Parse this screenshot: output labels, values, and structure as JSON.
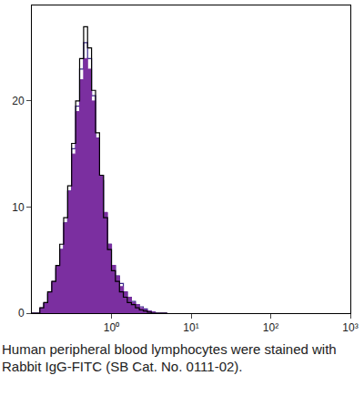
{
  "chart_data": {
    "type": "histogram",
    "annotations": [
      "Human peripheral blood lymphocytes were stained with Rabbit IgG-FITC (SB Cat. No. 0111-02)."
    ],
    "log": "x",
    "bins": [
      0.1,
      0.112,
      0.126,
      0.141,
      0.158,
      0.178,
      0.2,
      0.224,
      0.251,
      0.282,
      0.316,
      0.355,
      0.398,
      0.447,
      0.501,
      0.562,
      0.631,
      0.708,
      0.794,
      0.891,
      1.0,
      1.12,
      1.26,
      1.41,
      1.58,
      1.78,
      2.0,
      2.24,
      2.51,
      2.82,
      3.16,
      3.55,
      3.98,
      4.47,
      5.01
    ],
    "series": [
      {
        "color": "#3b2a8c",
        "type": "line",
        "values": [
          0,
          0,
          0.4,
          0.9,
          1.8,
          2.8,
          4.2,
          6,
          8.5,
          11.5,
          15.5,
          19.5,
          23,
          25.5,
          24,
          20.5,
          16.5,
          12.5,
          9,
          6.5,
          4.5,
          3.5,
          2.8,
          2,
          1.5,
          1.1,
          0.8,
          0.6,
          0.4,
          0.2,
          0.1,
          0,
          0,
          0
        ]
      },
      {
        "color": "#7b2fa0",
        "type": "area",
        "values": [
          0,
          0,
          0.5,
          1,
          2,
          3,
          4.5,
          6,
          8.5,
          11.5,
          15,
          19,
          22,
          24,
          23,
          20,
          16.5,
          13,
          9.5,
          6.5,
          4.5,
          3.5,
          2.5,
          2,
          1.5,
          1,
          0.8,
          0.5,
          0.3,
          0.2,
          0.1,
          0,
          0,
          0
        ]
      },
      {
        "color": "#000000",
        "type": "line",
        "values": [
          0,
          0,
          0.5,
          1,
          2,
          3,
          4.5,
          6.5,
          9,
          12,
          16,
          20,
          24,
          27,
          25,
          21,
          17,
          13,
          9,
          6,
          4,
          3,
          2,
          1.5,
          1,
          0.8,
          0.5,
          0.3,
          0.2,
          0.1,
          0,
          0,
          0,
          0
        ]
      }
    ],
    "xlim": [
      0.1,
      1000
    ],
    "xticks": [
      {
        "value": 1,
        "label": "10⁰"
      },
      {
        "value": 10,
        "label": "10¹"
      },
      {
        "value": 100,
        "label": "10²"
      },
      {
        "value": 1000,
        "label": "10³"
      }
    ],
    "ylim": [
      0,
      29
    ],
    "yticks": [
      0,
      10,
      20
    ],
    "grid": false
  }
}
